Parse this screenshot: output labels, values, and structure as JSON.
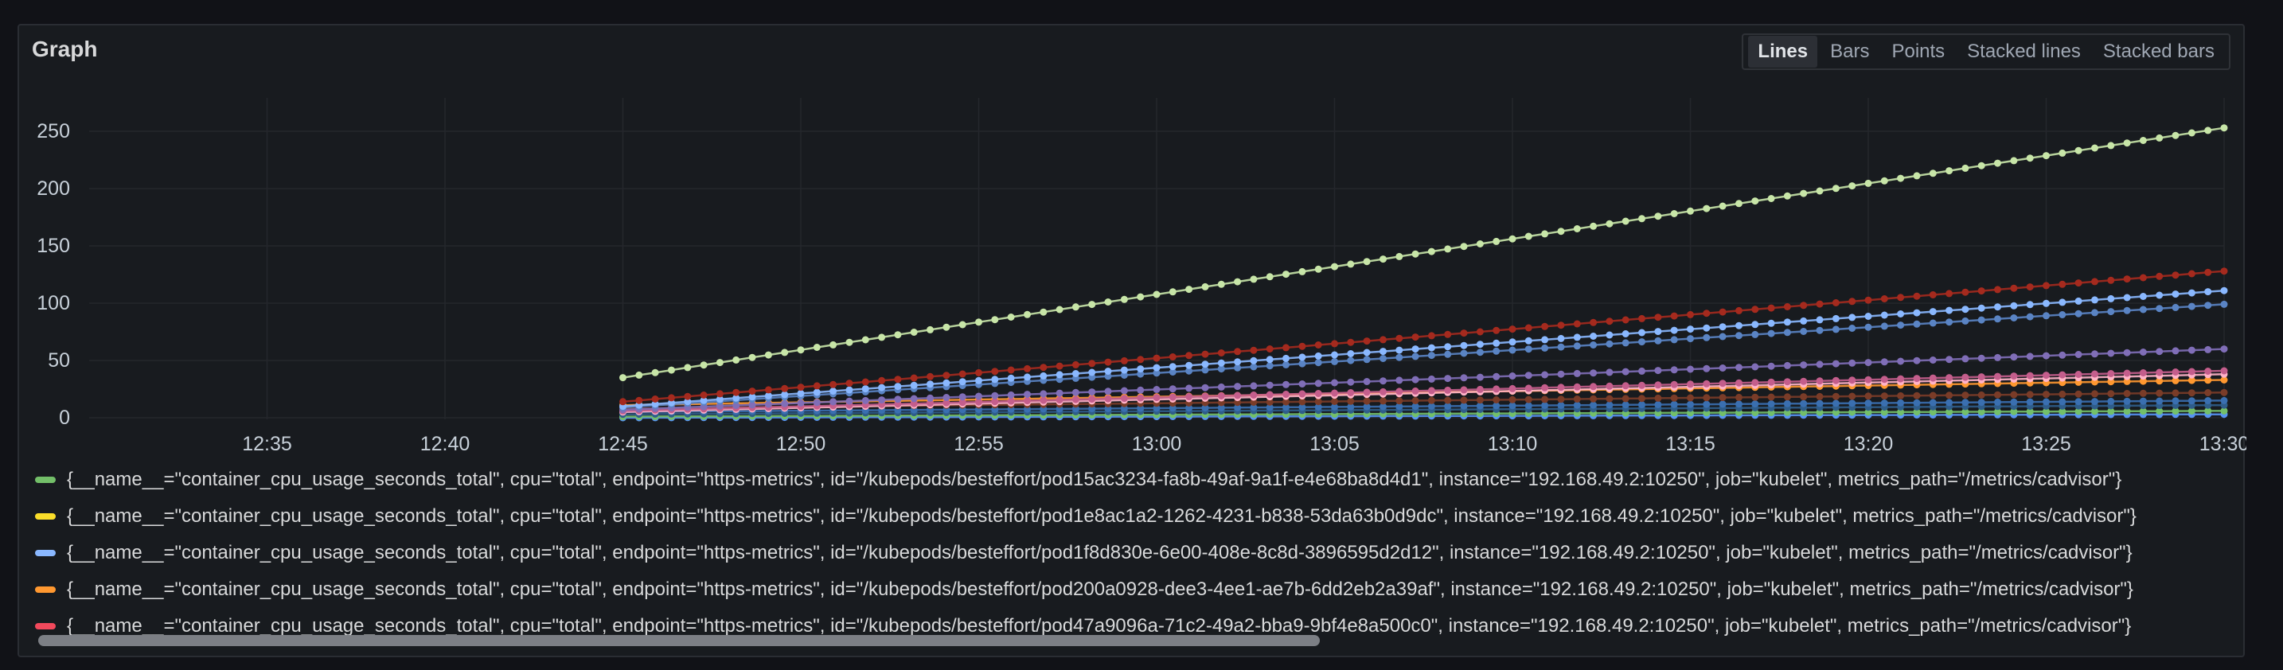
{
  "panel": {
    "title": "Graph"
  },
  "viz_options": [
    "Lines",
    "Bars",
    "Points",
    "Stacked lines",
    "Stacked bars"
  ],
  "viz_active": "Lines",
  "chart_data": {
    "type": "line",
    "x_ticks": [
      "12:35",
      "12:40",
      "12:45",
      "12:50",
      "12:55",
      "13:00",
      "13:05",
      "13:10",
      "13:15",
      "13:20",
      "13:25",
      "13:30"
    ],
    "y_ticks": [
      "0",
      "50",
      "100",
      "150",
      "200",
      "250"
    ],
    "xlim": [
      "12:30",
      "13:30"
    ],
    "ylim": [
      0,
      275
    ],
    "x_start": "12:45",
    "x_end": "13:30",
    "num_points": 100,
    "grid": true,
    "markers": true,
    "series": [
      {
        "color": "#c8e6a8",
        "values": [
          35,
          253
        ]
      },
      {
        "color": "#a52a1e",
        "values": [
          14,
          128
        ]
      },
      {
        "color": "#8ab8ff",
        "values": [
          10,
          111
        ]
      },
      {
        "color": "#5a84c4",
        "values": [
          9,
          99
        ]
      },
      {
        "color": "#806eb7",
        "values": [
          7,
          60
        ]
      },
      {
        "color": "#c45e8c",
        "values": [
          6,
          41
        ]
      },
      {
        "color": "#ffb3c8",
        "values": [
          5,
          38
        ]
      },
      {
        "color": "#ff9830",
        "values": [
          11,
          33
        ]
      },
      {
        "color": "#7a3c28",
        "values": [
          8,
          22
        ]
      },
      {
        "color": "#3a6fb0",
        "values": [
          5,
          15
        ]
      },
      {
        "color": "#2f5d8a",
        "values": [
          3,
          11
        ]
      },
      {
        "color": "#73bf69",
        "values": [
          1,
          6
        ]
      },
      {
        "color": "#5794f2",
        "values": [
          0,
          3
        ]
      }
    ]
  },
  "legend": [
    {
      "color": "#73bf69",
      "label": "{__name__=\"container_cpu_usage_seconds_total\", cpu=\"total\", endpoint=\"https-metrics\", id=\"/kubepods/besteffort/pod15ac3234-fa8b-49af-9a1f-e4e68ba8d4d1\", instance=\"192.168.49.2:10250\", job=\"kubelet\", metrics_path=\"/metrics/cadvisor\"}"
    },
    {
      "color": "#fade2a",
      "label": "{__name__=\"container_cpu_usage_seconds_total\", cpu=\"total\", endpoint=\"https-metrics\", id=\"/kubepods/besteffort/pod1e8ac1a2-1262-4231-b838-53da63b0d9dc\", instance=\"192.168.49.2:10250\", job=\"kubelet\", metrics_path=\"/metrics/cadvisor\"}"
    },
    {
      "color": "#8ab8ff",
      "label": "{__name__=\"container_cpu_usage_seconds_total\", cpu=\"total\", endpoint=\"https-metrics\", id=\"/kubepods/besteffort/pod1f8d830e-6e00-408e-8c8d-3896595d2d12\", instance=\"192.168.49.2:10250\", job=\"kubelet\", metrics_path=\"/metrics/cadvisor\"}"
    },
    {
      "color": "#ff9830",
      "label": "{__name__=\"container_cpu_usage_seconds_total\", cpu=\"total\", endpoint=\"https-metrics\", id=\"/kubepods/besteffort/pod200a0928-dee3-4ee1-ae7b-6dd2eb2a39af\", instance=\"192.168.49.2:10250\", job=\"kubelet\", metrics_path=\"/metrics/cadvisor\"}"
    },
    {
      "color": "#f2495c",
      "label": "{__name__=\"container_cpu_usage_seconds_total\", cpu=\"total\", endpoint=\"https-metrics\", id=\"/kubepods/besteffort/pod47a9096a-71c2-49a2-bba9-9bf4e8a500c0\", instance=\"192.168.49.2:10250\", job=\"kubelet\", metrics_path=\"/metrics/cadvisor\"}"
    }
  ]
}
